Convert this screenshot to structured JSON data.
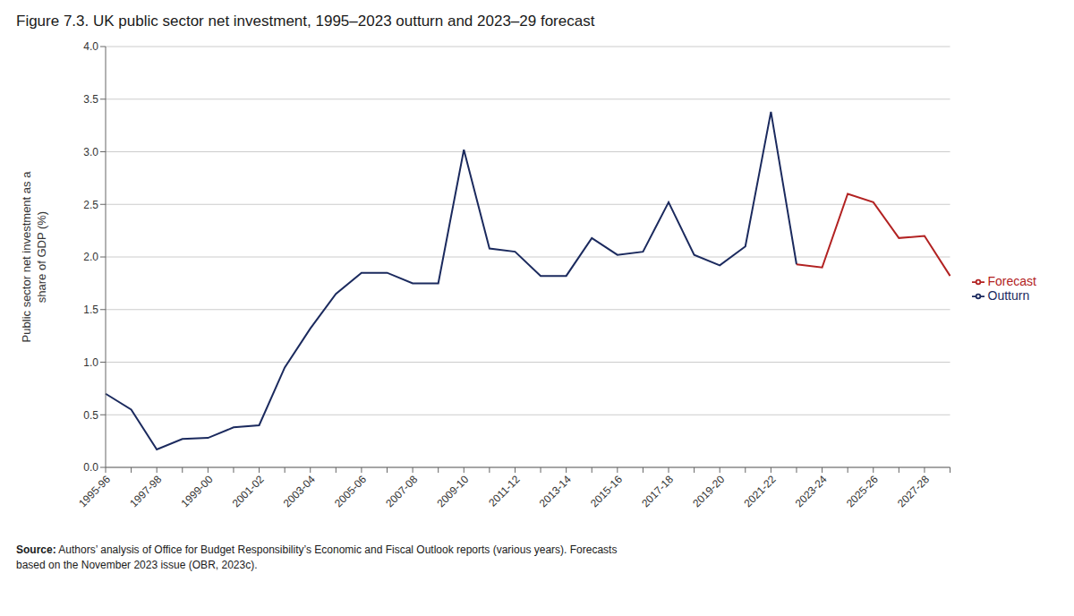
{
  "chart_data": {
    "type": "line",
    "title": "Figure 7.3. UK public sector net investment, 1995–2023 outturn and 2023–29 forecast",
    "ylabel": "Public sector net investment as a\nshare of GDP (%)",
    "source": "Source: Authors’ analysis of Office for Budget Responsibility’s Economic and Fiscal Outlook reports (various years). Forecasts\nbased on the November 2023 issue (OBR, 2023c).",
    "categories": [
      "1995-96",
      null,
      "1997-98",
      null,
      "1999-00",
      null,
      "2001-02",
      null,
      "2003-04",
      null,
      "2005-06",
      null,
      "2007-08",
      null,
      "2009-10",
      null,
      "2011-12",
      null,
      "2013-14",
      null,
      "2015-16",
      null,
      "2017-18",
      null,
      "2019-20",
      null,
      "2021-22",
      null,
      "2023-24",
      null,
      "2025-26",
      null,
      "2027-28",
      null
    ],
    "series": [
      {
        "name": "Outturn",
        "color": "#1b2a5e",
        "values": [
          0.7,
          0.55,
          0.17,
          0.27,
          0.28,
          0.38,
          0.4,
          0.95,
          1.32,
          1.65,
          1.85,
          1.85,
          1.75,
          1.75,
          3.02,
          2.08,
          2.05,
          1.82,
          1.82,
          2.18,
          2.02,
          2.05,
          2.52,
          2.02,
          1.92,
          2.1,
          3.38,
          1.93,
          null,
          null,
          null,
          null,
          null,
          null
        ]
      },
      {
        "name": "Forecast",
        "color": "#b22222",
        "values": [
          null,
          null,
          null,
          null,
          null,
          null,
          null,
          null,
          null,
          null,
          null,
          null,
          null,
          null,
          null,
          null,
          null,
          null,
          null,
          null,
          null,
          null,
          null,
          null,
          null,
          null,
          null,
          1.93,
          1.9,
          2.6,
          2.52,
          2.18,
          2.2,
          1.82
        ]
      }
    ],
    "ylim": [
      0.0,
      4.0
    ],
    "yticks": [
      {
        "value": 0.0,
        "label": "0.0"
      },
      0.5,
      {
        "value": 1.0,
        "label": "1.0"
      },
      1.5,
      {
        "value": 2.0,
        "label": "2.0"
      },
      2.5,
      {
        "value": 3.0,
        "label": "3.0"
      },
      3.5,
      {
        "value": 4.0,
        "label": "4.0"
      }
    ],
    "grid": true,
    "legend": "right"
  }
}
